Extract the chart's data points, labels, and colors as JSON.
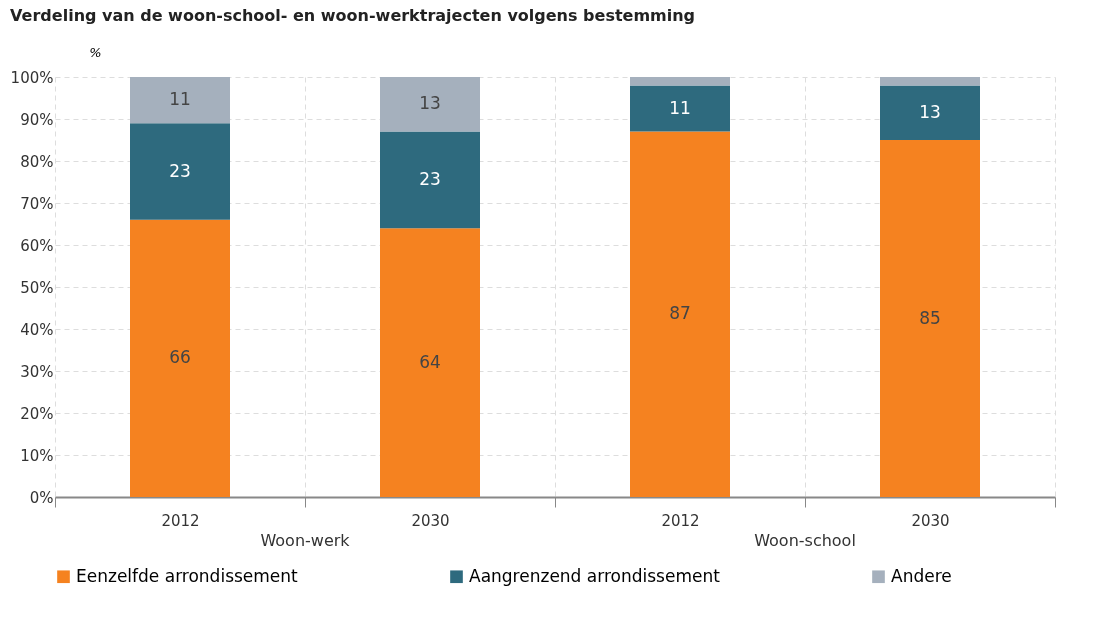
{
  "chart_data": {
    "type": "bar",
    "stacked": true,
    "title": "Verdeling van de woon-school- en woon-werktrajecten volgens bestemming",
    "ylabel": "%",
    "categories": [
      "2012",
      "2030",
      "2012",
      "2030"
    ],
    "annotations": [
      "Woon-werk",
      "Woon-school"
    ],
    "series": [
      {
        "name": "Eenzelfde arrondissement",
        "color": "#f58220",
        "values": [
          66,
          64,
          87,
          85
        ],
        "value_labels": [
          "66",
          "64",
          "87",
          "85"
        ]
      },
      {
        "name": "Aangrenzend arrondissement",
        "color": "#2e6a7e",
        "values": [
          23,
          23,
          11,
          13
        ],
        "value_labels": [
          "23",
          "23",
          "11",
          "13"
        ]
      },
      {
        "name": "Andere",
        "color": "#a5b0bd",
        "values": [
          11,
          13,
          2,
          2
        ],
        "value_labels": [
          "11",
          "13",
          null,
          null
        ]
      }
    ],
    "ylim": [
      0,
      100
    ],
    "yticks": [
      {
        "value": 0,
        "label": "0%"
      },
      {
        "value": 10,
        "label": "10%"
      },
      {
        "value": 20,
        "label": "20%"
      },
      {
        "value": 30,
        "label": "30%"
      },
      {
        "value": 40,
        "label": "40%"
      },
      {
        "value": 50,
        "label": "50%"
      },
      {
        "value": 60,
        "label": "60%"
      },
      {
        "value": 70,
        "label": "70%"
      },
      {
        "value": 80,
        "label": "80%"
      },
      {
        "value": 90,
        "label": "90%"
      },
      {
        "value": 100,
        "label": "100%"
      }
    ],
    "grid": true,
    "legend": "bottom"
  }
}
